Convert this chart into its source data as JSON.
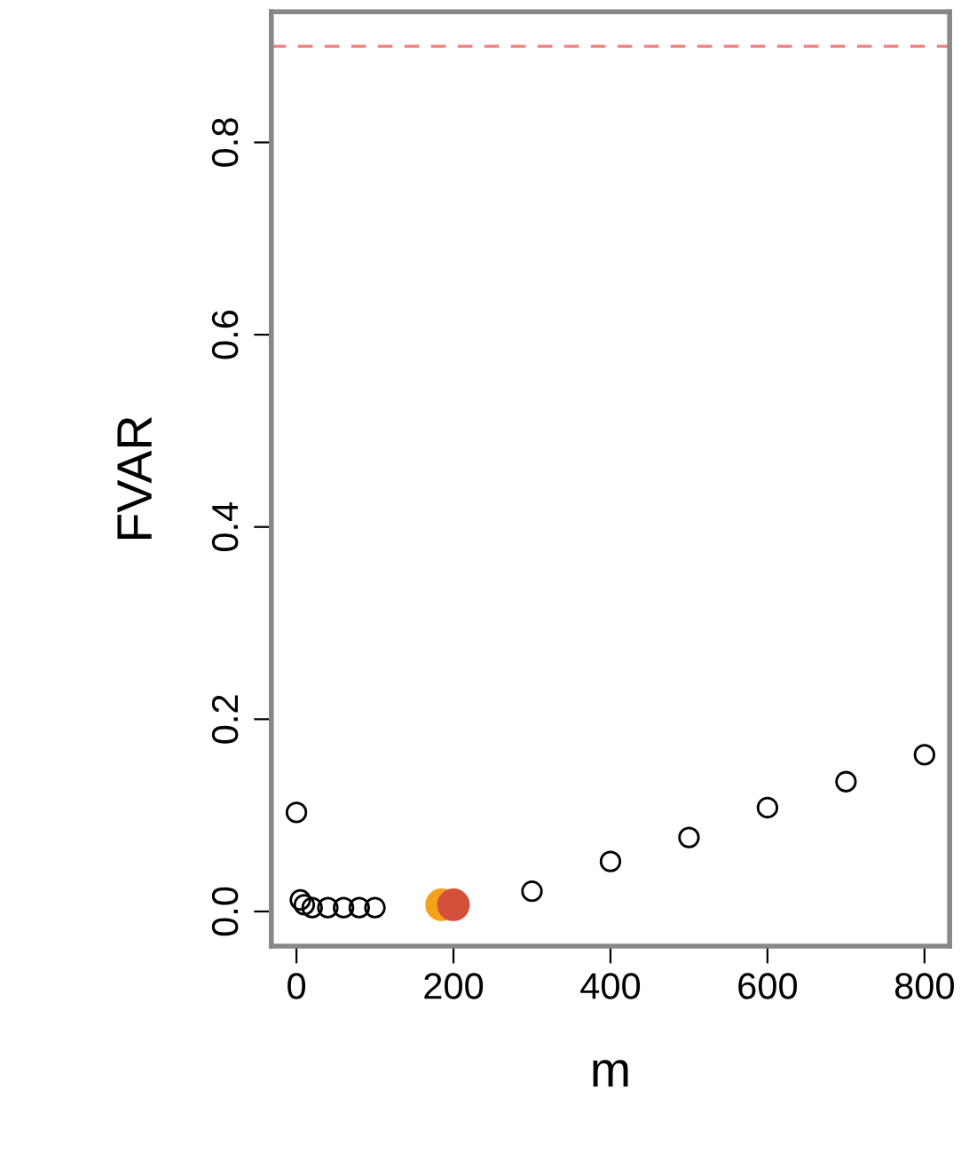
{
  "chart_data": {
    "type": "scatter",
    "xlabel": "m",
    "ylabel": "FVAR",
    "series": [
      {
        "x": [
          0,
          5,
          10,
          20,
          40,
          60,
          80,
          100,
          300,
          400,
          500,
          600,
          700,
          800
        ],
        "values": [
          0.103,
          0.012,
          0.007,
          0.004,
          0.004,
          0.004,
          0.004,
          0.004,
          0.021,
          0.052,
          0.077,
          0.108,
          0.135,
          0.163
        ],
        "color": "#000000",
        "marker": "circle"
      },
      {
        "x": [
          185
        ],
        "values": [
          0.007
        ],
        "color": "#f5a21b",
        "marker": "circle"
      },
      {
        "x": [
          200
        ],
        "values": [
          0.007
        ],
        "color": "#d4503a",
        "marker": "circle"
      }
    ],
    "xlim": [
      -32,
      832
    ],
    "ylim": [
      -0.036,
      0.936
    ],
    "xticks": [
      0,
      200,
      400,
      600,
      800
    ],
    "yticks": [
      {
        "value": 0,
        "label": "0.0"
      },
      0.2,
      0.4,
      0.6,
      0.8
    ],
    "ref_lines": [
      {
        "axis": "y",
        "value": 0.9,
        "color": "#f08080",
        "line_style": "dashed"
      }
    ],
    "grid": false,
    "legend": false
  }
}
